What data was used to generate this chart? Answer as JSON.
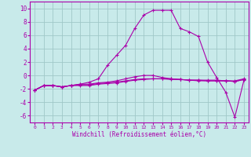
{
  "xlabel": "Windchill (Refroidissement éolien,°C)",
  "background_color": "#c8eaea",
  "grid_color": "#a0c8c8",
  "line_color": "#aa00aa",
  "xlim": [
    -0.5,
    23.5
  ],
  "ylim": [
    -7,
    11
  ],
  "xticks": [
    0,
    1,
    2,
    3,
    4,
    5,
    6,
    7,
    8,
    9,
    10,
    11,
    12,
    13,
    14,
    15,
    16,
    17,
    18,
    19,
    20,
    21,
    22,
    23
  ],
  "yticks": [
    -6,
    -4,
    -2,
    0,
    2,
    4,
    6,
    8,
    10
  ],
  "line1_x": [
    0,
    1,
    2,
    3,
    4,
    5,
    6,
    7,
    8,
    9,
    10,
    11,
    12,
    13,
    14,
    15,
    16,
    17,
    18,
    19,
    20,
    21,
    22,
    23
  ],
  "line1_y": [
    -2.2,
    -1.5,
    -1.5,
    -1.7,
    -1.5,
    -1.3,
    -1.0,
    -0.5,
    1.5,
    3.0,
    4.5,
    7.0,
    9.0,
    9.7,
    9.7,
    9.7,
    7.0,
    6.5,
    5.8,
    2.0,
    -0.3,
    -2.5,
    -6.2,
    -0.7
  ],
  "line2_x": [
    0,
    1,
    2,
    3,
    4,
    5,
    6,
    7,
    8,
    9,
    10,
    11,
    12,
    13,
    14,
    15,
    16,
    17,
    18,
    19,
    20,
    21,
    22,
    23
  ],
  "line2_y": [
    -2.2,
    -1.5,
    -1.5,
    -1.7,
    -1.5,
    -1.3,
    -1.3,
    -1.1,
    -1.0,
    -0.8,
    -0.5,
    -0.2,
    0.0,
    0.0,
    -0.3,
    -0.5,
    -0.6,
    -0.7,
    -0.7,
    -0.7,
    -0.7,
    -0.8,
    -0.8,
    -0.5
  ],
  "line3_x": [
    0,
    1,
    2,
    3,
    4,
    5,
    6,
    7,
    8,
    9,
    10,
    11,
    12,
    13,
    14,
    15,
    16,
    17,
    18,
    19,
    20,
    21,
    22,
    23
  ],
  "line3_y": [
    -2.2,
    -1.5,
    -1.5,
    -1.7,
    -1.5,
    -1.4,
    -1.4,
    -1.2,
    -1.1,
    -1.0,
    -0.8,
    -0.6,
    -0.5,
    -0.5,
    -0.5,
    -0.6,
    -0.6,
    -0.7,
    -0.8,
    -0.8,
    -0.8,
    -0.8,
    -0.9,
    -0.6
  ],
  "line4_x": [
    0,
    1,
    2,
    3,
    4,
    5,
    6,
    7,
    8,
    9,
    10,
    11,
    12,
    13,
    14,
    15,
    16,
    17,
    18,
    19,
    20,
    21,
    22,
    23
  ],
  "line4_y": [
    -2.2,
    -1.5,
    -1.5,
    -1.7,
    -1.5,
    -1.5,
    -1.5,
    -1.3,
    -1.2,
    -1.1,
    -0.9,
    -0.7,
    -0.6,
    -0.5,
    -0.5,
    -0.5,
    -0.6,
    -0.7,
    -0.7,
    -0.8,
    -0.8,
    -0.8,
    -0.9,
    -0.6
  ]
}
